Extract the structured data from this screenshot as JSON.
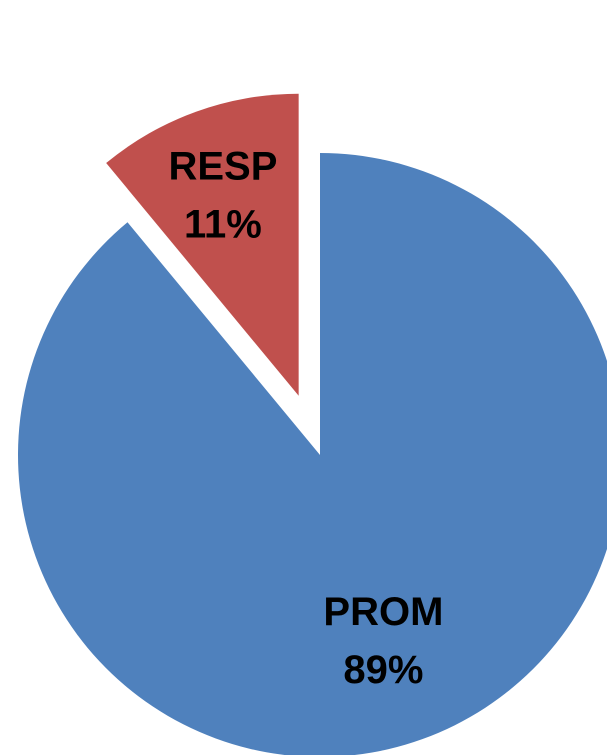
{
  "chart_data": {
    "type": "pie",
    "title": "",
    "legend": "none",
    "slices": [
      {
        "label": "PROM",
        "value": 89,
        "display": "89%",
        "color": "#4F81BD",
        "exploded": false
      },
      {
        "label": "RESP",
        "value": 11,
        "display": "11%",
        "color": "#C0504D",
        "exploded": true
      }
    ]
  }
}
